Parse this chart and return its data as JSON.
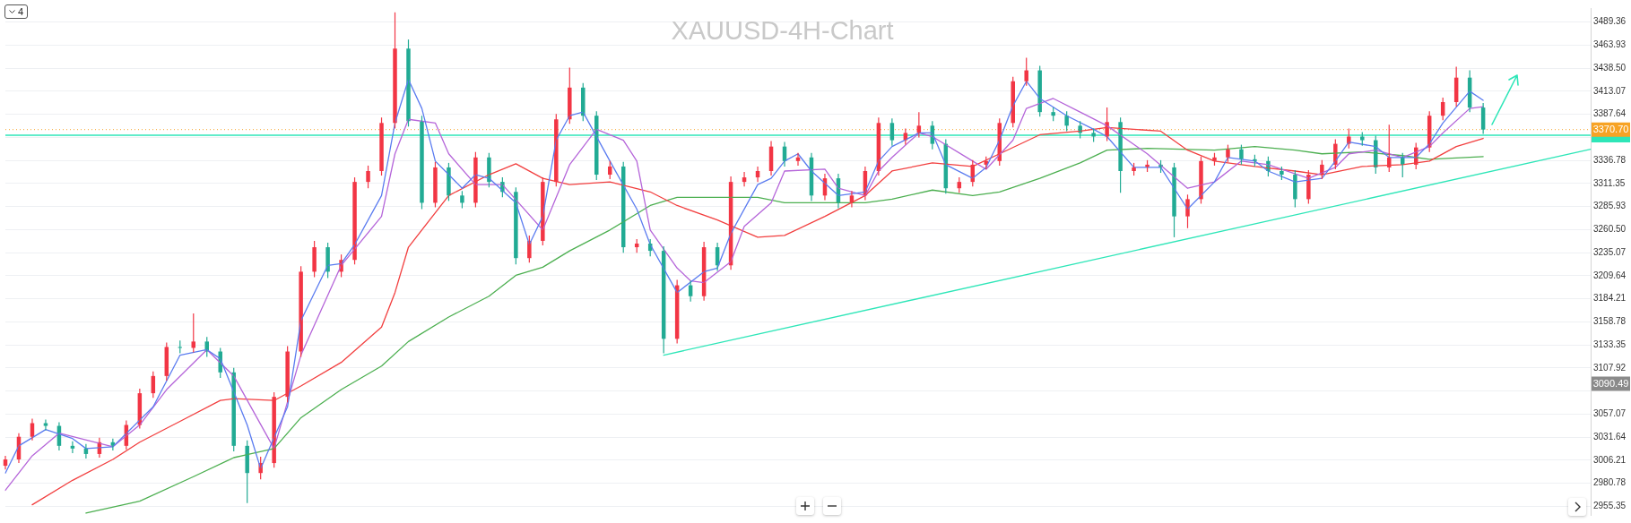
{
  "chart_data": {
    "type": "candlestick",
    "title": "XAUUSD-4H-Chart",
    "categories": [
      null,
      null,
      null,
      null,
      null,
      null,
      null,
      null,
      null,
      null,
      null,
      null,
      null,
      null,
      null,
      null,
      null,
      null,
      null,
      null,
      null,
      null,
      null,
      null,
      null,
      null,
      null,
      null,
      null,
      null,
      null,
      null,
      null,
      null,
      null,
      null,
      null,
      null,
      null,
      null,
      null,
      null,
      null,
      null,
      null,
      null,
      null,
      null,
      null,
      null,
      null,
      null,
      null,
      null,
      null,
      null,
      null,
      null,
      null,
      null,
      null,
      null,
      null,
      null,
      null,
      null,
      null,
      null,
      null,
      null,
      null,
      null,
      null,
      null,
      null,
      null,
      null,
      null,
      null,
      null,
      null,
      null,
      null,
      null,
      null,
      null,
      null,
      null,
      null,
      null,
      null,
      null,
      null,
      null,
      null,
      null,
      null,
      null,
      null,
      null,
      null,
      null,
      null,
      null,
      null,
      null,
      null,
      null,
      null,
      null,
      null,
      null,
      null,
      null,
      null,
      null,
      null,
      null,
      null
    ],
    "ohlc": [
      [
        3000,
        3011,
        2996,
        3007
      ],
      [
        3007,
        3036,
        3003,
        3032
      ],
      [
        3032,
        3052,
        3028,
        3047
      ],
      [
        3047,
        3051,
        3039,
        3044
      ],
      [
        3044,
        3048,
        3017,
        3022
      ],
      [
        3022,
        3027,
        3014,
        3019
      ],
      [
        3019,
        3024,
        3008,
        3013
      ],
      [
        3013,
        3031,
        3009,
        3026
      ],
      [
        3026,
        3030,
        3017,
        3022
      ],
      [
        3022,
        3050,
        3018,
        3045
      ],
      [
        3045,
        3085,
        3041,
        3080
      ],
      [
        3080,
        3104,
        3075,
        3099
      ],
      [
        3099,
        3136,
        3094,
        3131
      ],
      [
        3131,
        3138,
        3124,
        3130
      ],
      [
        3130,
        3168,
        3125,
        3137
      ],
      [
        3137,
        3142,
        3120,
        3126
      ],
      [
        3126,
        3130,
        3097,
        3103
      ],
      [
        3103,
        3108,
        3016,
        3022
      ],
      [
        3022,
        3028,
        2959,
        2992
      ],
      [
        2992,
        3010,
        2985,
        3003
      ],
      [
        3003,
        3081,
        2998,
        3076
      ],
      [
        3076,
        3132,
        3070,
        3126
      ],
      [
        3126,
        3220,
        3120,
        3214
      ],
      [
        3214,
        3248,
        3208,
        3241
      ],
      [
        3241,
        3246,
        3207,
        3214
      ],
      [
        3214,
        3233,
        3208,
        3227
      ],
      [
        3227,
        3318,
        3222,
        3313
      ],
      [
        3313,
        3331,
        3306,
        3325
      ],
      [
        3325,
        3384,
        3320,
        3378
      ],
      [
        3378,
        3500,
        3372,
        3460
      ],
      [
        3460,
        3470,
        3374,
        3380
      ],
      [
        3380,
        3386,
        3283,
        3290
      ],
      [
        3290,
        3335,
        3285,
        3329
      ],
      [
        3329,
        3334,
        3292,
        3298
      ],
      [
        3298,
        3303,
        3284,
        3290
      ],
      [
        3290,
        3346,
        3285,
        3340
      ],
      [
        3340,
        3345,
        3307,
        3313
      ],
      [
        3313,
        3318,
        3296,
        3302
      ],
      [
        3302,
        3307,
        3222,
        3229
      ],
      [
        3229,
        3254,
        3224,
        3248
      ],
      [
        3248,
        3318,
        3243,
        3313
      ],
      [
        3313,
        3388,
        3308,
        3382
      ],
      [
        3382,
        3439,
        3377,
        3417
      ],
      [
        3417,
        3422,
        3380,
        3386
      ],
      [
        3386,
        3391,
        3315,
        3321
      ],
      [
        3321,
        3336,
        3316,
        3330
      ],
      [
        3330,
        3335,
        3235,
        3241
      ],
      [
        3241,
        3250,
        3235,
        3245
      ],
      [
        3245,
        3250,
        3231,
        3237
      ],
      [
        3237,
        3242,
        3124,
        3140
      ],
      [
        3140,
        3205,
        3135,
        3199
      ],
      [
        3199,
        3204,
        3181,
        3187
      ],
      [
        3187,
        3247,
        3182,
        3241
      ],
      [
        3241,
        3246,
        3215,
        3221
      ],
      [
        3221,
        3319,
        3216,
        3313
      ],
      [
        3313,
        3324,
        3308,
        3318
      ],
      [
        3318,
        3330,
        3313,
        3325
      ],
      [
        3325,
        3358,
        3320,
        3352
      ],
      [
        3352,
        3357,
        3330,
        3336
      ],
      [
        3336,
        3345,
        3331,
        3340
      ],
      [
        3340,
        3345,
        3292,
        3298
      ],
      [
        3298,
        3322,
        3293,
        3317
      ],
      [
        3317,
        3322,
        3284,
        3290
      ],
      [
        3290,
        3303,
        3285,
        3298
      ],
      [
        3298,
        3330,
        3293,
        3325
      ],
      [
        3325,
        3384,
        3320,
        3378
      ],
      [
        3378,
        3383,
        3353,
        3359
      ],
      [
        3359,
        3372,
        3354,
        3367
      ],
      [
        3367,
        3390,
        3362,
        3375
      ],
      [
        3375,
        3380,
        3349,
        3355
      ],
      [
        3355,
        3360,
        3300,
        3306
      ],
      [
        3306,
        3318,
        3301,
        3313
      ],
      [
        3313,
        3337,
        3308,
        3332
      ],
      [
        3332,
        3341,
        3327,
        3336
      ],
      [
        3336,
        3383,
        3331,
        3378
      ],
      [
        3378,
        3429,
        3373,
        3424
      ],
      [
        3424,
        3450,
        3419,
        3436
      ],
      [
        3436,
        3441,
        3385,
        3390
      ],
      [
        3390,
        3395,
        3380,
        3386
      ],
      [
        3386,
        3391,
        3369,
        3375
      ],
      [
        3375,
        3380,
        3361,
        3367
      ],
      [
        3367,
        3372,
        3357,
        3363
      ],
      [
        3363,
        3395,
        3358,
        3379
      ],
      [
        3379,
        3384,
        3301,
        3325
      ],
      [
        3325,
        3334,
        3320,
        3329
      ],
      [
        3329,
        3337,
        3324,
        3332
      ],
      [
        3332,
        3337,
        3323,
        3329
      ],
      [
        3329,
        3334,
        3252,
        3275
      ],
      [
        3275,
        3299,
        3262,
        3294
      ],
      [
        3294,
        3341,
        3289,
        3336
      ],
      [
        3336,
        3345,
        3331,
        3340
      ],
      [
        3340,
        3354,
        3335,
        3349
      ],
      [
        3349,
        3354,
        3332,
        3338
      ],
      [
        3338,
        3343,
        3330,
        3336
      ],
      [
        3336,
        3341,
        3319,
        3325
      ],
      [
        3325,
        3330,
        3315,
        3321
      ],
      [
        3321,
        3326,
        3285,
        3294
      ],
      [
        3294,
        3326,
        3289,
        3321
      ],
      [
        3321,
        3337,
        3316,
        3332
      ],
      [
        3332,
        3360,
        3327,
        3355
      ],
      [
        3355,
        3372,
        3350,
        3363
      ],
      [
        3363,
        3368,
        3353,
        3359
      ],
      [
        3359,
        3364,
        3322,
        3329
      ],
      [
        3329,
        3376,
        3324,
        3340
      ],
      [
        3340,
        3345,
        3318,
        3332
      ],
      [
        3332,
        3356,
        3327,
        3351
      ],
      [
        3351,
        3391,
        3346,
        3386
      ],
      [
        3386,
        3406,
        3381,
        3401
      ],
      [
        3401,
        3440,
        3396,
        3428
      ],
      [
        3428,
        3436,
        3390,
        3395
      ],
      [
        3395,
        3400,
        3366,
        3370.7
      ],
      null,
      null,
      null,
      null,
      null,
      null,
      null,
      null
    ],
    "colors": [
      "#f23645",
      "#f23645",
      "#f23645",
      "#22ab94",
      "#22ab94",
      "#22ab94",
      "#22ab94",
      "#f23645",
      "#22ab94",
      "#f23645",
      "#f23645",
      "#f23645",
      "#f23645",
      "#22ab94",
      "#f23645",
      "#22ab94",
      "#22ab94",
      "#22ab94",
      "#22ab94",
      "#f23645",
      "#f23645",
      "#f23645",
      "#f23645",
      "#f23645",
      "#22ab94",
      "#f23645",
      "#f23645",
      "#f23645",
      "#f23645",
      "#f23645",
      "#22ab94",
      "#22ab94",
      "#f23645",
      "#22ab94",
      "#22ab94",
      "#f23645",
      "#22ab94",
      "#22ab94",
      "#22ab94",
      "#f23645",
      "#f23645",
      "#f23645",
      "#f23645",
      "#22ab94",
      "#22ab94",
      "#f23645",
      "#22ab94",
      "#f23645",
      "#22ab94",
      "#22ab94",
      "#f23645",
      "#22ab94",
      "#f23645",
      "#22ab94",
      "#f23645",
      "#f23645",
      "#f23645",
      "#f23645",
      "#22ab94",
      "#f23645",
      "#22ab94",
      "#f23645",
      "#22ab94",
      "#f23645",
      "#f23645",
      "#f23645",
      "#22ab94",
      "#f23645",
      "#f23645",
      "#22ab94",
      "#22ab94",
      "#f23645",
      "#f23645",
      "#f23645",
      "#f23645",
      "#f23645",
      "#f23645",
      "#22ab94",
      "#22ab94",
      "#22ab94",
      "#22ab94",
      "#22ab94",
      "#f23645",
      "#22ab94",
      "#f23645",
      "#f23645",
      "#22ab94",
      "#22ab94",
      "#f23645",
      "#f23645",
      "#f23645",
      "#f23645",
      "#22ab94",
      "#22ab94",
      "#22ab94",
      "#22ab94",
      "#22ab94",
      "#f23645",
      "#f23645",
      "#f23645",
      "#f23645",
      "#22ab94",
      "#22ab94",
      "#f23645",
      "#22ab94",
      "#f23645",
      "#f23645",
      "#f23645",
      "#f23645",
      "#22ab94",
      "#22ab94",
      null,
      null,
      null,
      null,
      null,
      null,
      null,
      null
    ],
    "series": [
      {
        "type": "line",
        "color": "#5b7cf0",
        "values": [
          2992,
          3022,
          null,
          3040,
          null,
          3030,
          3019,
          null,
          3021,
          null,
          null,
          3065,
          null,
          3122,
          null,
          3128,
          3118,
          null,
          3045,
          2997,
          null,
          3065,
          3160,
          null,
          3221,
          3223,
          3244,
          null,
          3298,
          3378,
          3426,
          3394,
          3336,
          3321,
          3306,
          3321,
          3317,
          null,
          3290,
          3244,
          3275,
          3359,
          3386,
          3390,
          null,
          3336,
          null,
          3283,
          3244,
          null,
          3191,
          null,
          3214,
          3218,
          3256,
          null,
          3310,
          3317,
          3336,
          3344,
          3325,
          null,
          3298,
          null,
          3302,
          3336,
          3352,
          null,
          3367,
          3367,
          3332,
          null,
          3317,
          3329,
          3359,
          3397,
          3424,
          3405,
          null,
          3386,
          null,
          3371,
          3363,
          null,
          3329,
          null,
          3329,
          null,
          3283,
          null,
          3313,
          3340,
          null,
          3336,
          3325,
          null,
          3313,
          null,
          3317,
          3336,
          3357,
          null,
          3352,
          3340,
          null,
          3340,
          3355,
          3378,
          null,
          3413,
          3403,
          null,
          null,
          null,
          null,
          null,
          null,
          null,
          null
        ]
      },
      {
        "type": "line",
        "color": "#b565d9",
        "values": [
          2973,
          null,
          3011,
          null,
          3036,
          null,
          null,
          null,
          3021,
          null,
          3045,
          null,
          3084,
          null,
          null,
          3128,
          null,
          3099,
          null,
          null,
          3019,
          null,
          3122,
          null,
          null,
          3221,
          null,
          null,
          3275,
          3344,
          3382,
          null,
          3378,
          3344,
          null,
          3310,
          null,
          3310,
          null,
          null,
          3260,
          null,
          3332,
          null,
          3371,
          null,
          3359,
          3336,
          3260,
          null,
          3218,
          3204,
          3202,
          null,
          3225,
          3264,
          null,
          3290,
          3325,
          null,
          null,
          3327,
          3306,
          null,
          3298,
          3325,
          3340,
          null,
          3367,
          3363,
          null,
          null,
          3336,
          3327,
          null,
          3359,
          3394,
          null,
          3405,
          null,
          3390,
          null,
          3375,
          null,
          null,
          3344,
          null,
          null,
          3306,
          null,
          3313,
          null,
          3336,
          null,
          3332,
          null,
          null,
          3317,
          null,
          3329,
          3344,
          null,
          3348,
          null,
          3340,
          null,
          3352,
          3367,
          null,
          3394,
          3396,
          null,
          null,
          null,
          null,
          null,
          null,
          null,
          null
        ]
      },
      {
        "type": "line",
        "color": "#f23f3f",
        "values": [
          null,
          null,
          2957,
          null,
          null,
          2984,
          null,
          null,
          3007,
          null,
          3026,
          null,
          null,
          3049,
          null,
          null,
          3072,
          3074,
          null,
          null,
          3072,
          null,
          3088,
          null,
          null,
          3114,
          null,
          null,
          3153,
          3191,
          3241,
          null,
          null,
          3298,
          null,
          null,
          3321,
          null,
          3333,
          null,
          3317,
          null,
          3310,
          null,
          null,
          3313,
          null,
          null,
          3302,
          null,
          3287,
          null,
          null,
          3271,
          null,
          null,
          3252,
          null,
          3254,
          null,
          null,
          3275,
          null,
          null,
          3298,
          null,
          3325,
          null,
          null,
          3334,
          null,
          null,
          3330,
          null,
          3344,
          null,
          null,
          3365,
          null,
          null,
          3369,
          null,
          3373,
          null,
          null,
          null,
          3369,
          null,
          3348,
          null,
          3336,
          null,
          null,
          3330,
          null,
          null,
          3325,
          null,
          3321,
          null,
          null,
          3330,
          null,
          null,
          3332,
          null,
          3336,
          null,
          3352,
          null,
          3361,
          null,
          null,
          null,
          null,
          null,
          null,
          null,
          null
        ]
      },
      {
        "type": "line",
        "color": "#4caf50",
        "values": [
          null,
          null,
          null,
          null,
          null,
          null,
          2948,
          null,
          null,
          null,
          2961,
          null,
          null,
          null,
          2988,
          null,
          null,
          3009,
          null,
          null,
          3019,
          null,
          3053,
          null,
          null,
          3084,
          null,
          null,
          3110,
          null,
          3137,
          null,
          null,
          3164,
          null,
          null,
          3187,
          null,
          3210,
          null,
          3219,
          null,
          3237,
          null,
          null,
          3260,
          null,
          null,
          3287,
          null,
          3296,
          null,
          null,
          3296,
          null,
          null,
          3296,
          null,
          3290,
          null,
          null,
          3290,
          null,
          null,
          3290,
          null,
          3294,
          null,
          null,
          3304,
          null,
          null,
          3298,
          null,
          3302,
          null,
          null,
          3317,
          null,
          null,
          3334,
          null,
          3348,
          null,
          null,
          3350,
          null,
          null,
          null,
          null,
          3348,
          null,
          null,
          3352,
          null,
          null,
          3348,
          null,
          3344,
          null,
          null,
          3346,
          null,
          null,
          3342,
          null,
          3338,
          null,
          null,
          null,
          3341,
          null,
          null,
          null,
          null,
          null,
          null,
          null,
          null
        ]
      },
      {
        "type": "line",
        "color": "#2ee6b8",
        "values": [
          null,
          null,
          null,
          null,
          null,
          null,
          null,
          null,
          null,
          null,
          null,
          null,
          null,
          null,
          null,
          null,
          null,
          null,
          null,
          null,
          null,
          null,
          null,
          null,
          null,
          null,
          null,
          null,
          null,
          null,
          null,
          null,
          null,
          null,
          null,
          null,
          null,
          null,
          null,
          null,
          null,
          null,
          null,
          null,
          null,
          null,
          null,
          null,
          null,
          3122,
          null,
          null,
          null,
          null,
          null,
          null,
          null,
          null,
          null,
          null,
          null,
          null,
          null,
          null,
          null,
          null,
          null,
          null,
          null,
          null,
          null,
          null,
          null,
          null,
          null,
          null,
          null,
          null,
          null,
          null,
          null,
          null,
          null,
          null,
          null,
          null,
          null,
          null,
          null,
          null,
          null,
          null,
          null,
          null,
          null,
          null,
          null,
          null,
          null,
          null,
          null,
          null,
          null,
          null,
          null,
          null,
          null,
          null,
          null,
          null,
          null,
          null,
          null,
          null,
          null,
          null,
          null,
          null,
          3349
        ]
      }
    ],
    "marker": "none",
    "ylim": [
      2945.8,
      3504.7
    ],
    "yticks": [
      3489.36,
      3463.93,
      {
        "value": 3438.5,
        "label": "3438.50"
      },
      3413.07,
      3387.64,
      {
        "value": 3362.21,
        "label": null
      },
      3336.78,
      3311.35,
      3285.93,
      {
        "value": 3260.5,
        "label": "3260.50"
      },
      3235.07,
      3209.64,
      3184.21,
      3158.78,
      3133.35,
      3107.92,
      {
        "value": 3082.5,
        "label": null
      },
      3057.07,
      3031.64,
      3006.21,
      2980.78,
      2955.35
    ],
    "tick_labels": "y",
    "grid": "y",
    "ref_lines": [
      {
        "axis": "y",
        "value": 3364.5,
        "label": null,
        "color": "#2ee6b8",
        "line_style": "solid"
      },
      {
        "axis": "y",
        "value": 3370.7,
        "label": "3370.70",
        "color": "#f7a325",
        "line_style": "dotted"
      }
    ],
    "annotations": [
      "4",
      {
        "text": "3090.49",
        "y": 3090.49
      }
    ]
  }
}
